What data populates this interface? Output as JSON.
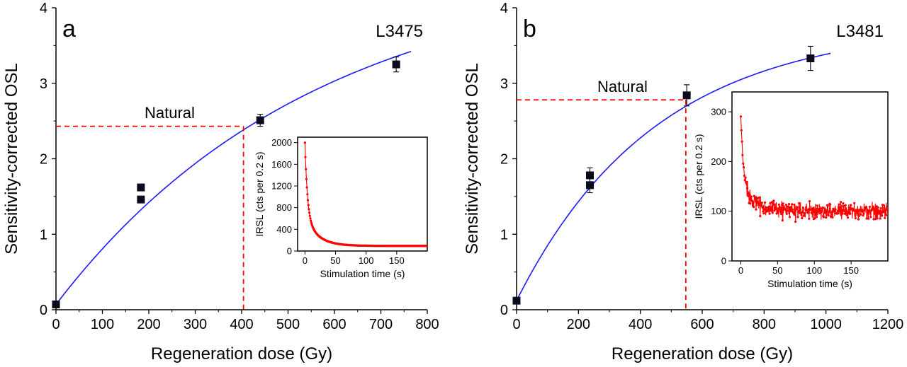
{
  "chart_data": [
    {
      "type": "scatter",
      "panel_label": "a",
      "sample_label": "L3475",
      "xlabel": "Regeneration dose (Gy)",
      "ylabel": "Sensitivity-corrected OSL",
      "xlim": [
        0,
        800
      ],
      "ylim": [
        0,
        4
      ],
      "xticks": [
        0,
        100,
        200,
        300,
        400,
        500,
        600,
        700,
        800
      ],
      "yticks": [
        0,
        1,
        2,
        3,
        4
      ],
      "points": [
        {
          "x": 0,
          "y": 0.07,
          "err": 0
        },
        {
          "x": 183,
          "y": 1.62,
          "err": 0
        },
        {
          "x": 183,
          "y": 1.46,
          "err": 0
        },
        {
          "x": 440,
          "y": 2.51,
          "err": 0.08
        },
        {
          "x": 733,
          "y": 3.25,
          "err": 0.1
        }
      ],
      "fit": {
        "type": "saturating-exponential",
        "y0": 0.07,
        "ymax": 4.57,
        "D0": 560,
        "x_range": [
          0,
          765
        ],
        "color": "#1a1aff"
      },
      "natural": {
        "label": "Natural",
        "y": 2.43,
        "dose": 404,
        "color": "#ff0000"
      },
      "inset": {
        "type": "line",
        "xlabel": "Stimulation time (s)",
        "ylabel": "IRSL (cts per 0.2 s)",
        "xlim": [
          -12,
          200
        ],
        "ylim": [
          0,
          2100
        ],
        "xticks": [
          0,
          50,
          100,
          150
        ],
        "yticks": [
          0,
          400,
          800,
          1200,
          1600,
          2000
        ],
        "decay": {
          "peak": 2000,
          "background": 95,
          "fast_amplitude": 1350,
          "fast_tau": 4,
          "slow_amplitude": 555,
          "slow_tau": 20,
          "noise": 0
        },
        "color": "#ff0000"
      }
    },
    {
      "type": "scatter",
      "panel_label": "b",
      "sample_label": "L3481",
      "xlabel": "Regeneration dose (Gy)",
      "ylabel": "Sensitivity-corrected OSL",
      "xlim": [
        0,
        1200
      ],
      "ylim": [
        0,
        4
      ],
      "xticks": [
        0,
        200,
        400,
        600,
        800,
        1000,
        1200
      ],
      "yticks": [
        0,
        1,
        2,
        3,
        4
      ],
      "points": [
        {
          "x": 0,
          "y": 0.12,
          "err": 0
        },
        {
          "x": 237,
          "y": 1.78,
          "err": 0.1
        },
        {
          "x": 237,
          "y": 1.65,
          "err": 0.1
        },
        {
          "x": 550,
          "y": 2.84,
          "err": 0.14
        },
        {
          "x": 950,
          "y": 3.33,
          "err": 0.16
        }
      ],
      "fit": {
        "type": "saturating-exponential",
        "y0": 0.12,
        "ymax": 3.78,
        "D0": 450,
        "x_range": [
          0,
          1015
        ],
        "color": "#1a1aff"
      },
      "natural": {
        "label": "Natural",
        "y": 2.78,
        "dose": 547,
        "color": "#ff0000"
      },
      "inset": {
        "type": "line",
        "xlabel": "Stimulation time (s)",
        "ylabel": "IRSL (cts per 0.2 s)",
        "xlim": [
          -12,
          200
        ],
        "ylim": [
          0,
          340
        ],
        "xticks": [
          0,
          50,
          100,
          150
        ],
        "yticks": [
          0,
          100,
          200,
          300
        ],
        "decay": {
          "peak": 290,
          "background": 100,
          "fast_amplitude": 120,
          "fast_tau": 3,
          "slow_amplitude": 70,
          "slow_tau": 15,
          "noise": 12
        },
        "color": "#ff0000"
      }
    }
  ]
}
